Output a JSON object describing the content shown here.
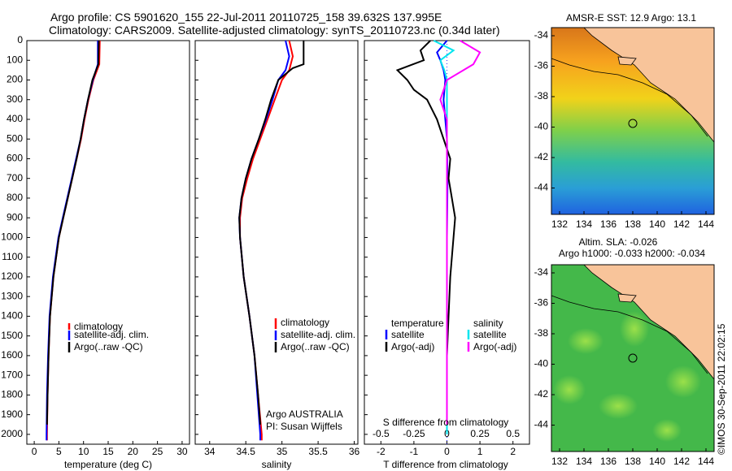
{
  "titles": {
    "line1": "Argo profile: CS 5901620_155 22-Jul-2011 20110725_158 39.632S 137.995E",
    "line2": "Climatology: CARS2009. Satellite-adjusted climatology: synTS_20110723.nc (0.34d later)"
  },
  "depth_ticks": [
    0,
    100,
    200,
    300,
    400,
    500,
    600,
    700,
    800,
    900,
    1000,
    1100,
    1200,
    1300,
    1400,
    1500,
    1600,
    1700,
    1800,
    1900,
    2000
  ],
  "colors": {
    "climatology": "#ff0000",
    "satellite": "#0000ff",
    "argo": "#000000",
    "sal_satellite": "#00e5ee",
    "sal_argo": "#ff00ff"
  },
  "chart_data": [
    {
      "type": "line",
      "xlabel": "temperature (deg C)",
      "xticks": [
        "0",
        "5",
        "10",
        "15",
        "20",
        "25",
        "30"
      ],
      "xlim": [
        -1.5,
        31.5
      ],
      "ylim": [
        2050,
        0
      ],
      "legend": [
        "climatology",
        "satellite-adj. clim.",
        "Argo(..raw -QC)"
      ],
      "series": [
        {
          "name": "climatology",
          "depth": [
            0,
            120,
            200,
            300,
            400,
            500,
            600,
            700,
            800,
            900,
            1000,
            1200,
            1400,
            1600,
            1800,
            2000,
            2030
          ],
          "values": [
            13.3,
            13.2,
            12.0,
            11.0,
            10.2,
            9.5,
            8.6,
            7.7,
            6.8,
            5.9,
            5.0,
            3.9,
            3.2,
            2.9,
            2.7,
            2.6,
            2.6
          ]
        },
        {
          "name": "satellite-adj. clim.",
          "depth": [
            0,
            120,
            200,
            300,
            400,
            500,
            600,
            700,
            800,
            900,
            1000,
            1200,
            1400,
            1600,
            1800,
            2000,
            2030
          ],
          "values": [
            12.9,
            12.9,
            11.9,
            10.9,
            10.1,
            9.4,
            8.5,
            7.6,
            6.7,
            5.8,
            4.9,
            3.8,
            3.1,
            2.8,
            2.6,
            2.5,
            2.5
          ]
        },
        {
          "name": "Argo(..raw -QC)",
          "depth": [
            0,
            120,
            200,
            300,
            400,
            500,
            600,
            700,
            800,
            900,
            1000,
            1200,
            1400,
            1600,
            1800,
            1950
          ],
          "values": [
            13.1,
            13.0,
            11.8,
            10.9,
            10.1,
            9.4,
            8.6,
            7.7,
            6.8,
            5.9,
            5.0,
            3.9,
            3.2,
            2.9,
            2.7,
            2.6
          ]
        }
      ]
    },
    {
      "type": "line",
      "xlabel": "salinity",
      "xticks": [
        "34",
        "34.5",
        "35",
        "35.5",
        "36"
      ],
      "xlim": [
        33.8,
        36.05
      ],
      "ylim": [
        2050,
        0
      ],
      "legend": [
        "climatology",
        "satellite-adj. clim.",
        "Argo(..raw -QC)"
      ],
      "annotation": [
        "Argo AUSTRALIA",
        "PI: Susan Wijffels"
      ],
      "series": [
        {
          "name": "climatology",
          "depth": [
            0,
            80,
            150,
            200,
            300,
            400,
            500,
            600,
            700,
            800,
            900,
            1000,
            1200,
            1400,
            1600,
            1800,
            2000,
            2030
          ],
          "values": [
            35.1,
            35.15,
            35.1,
            35.0,
            34.9,
            34.8,
            34.7,
            34.6,
            34.52,
            34.45,
            34.42,
            34.42,
            34.47,
            34.55,
            34.62,
            34.67,
            34.72,
            34.72
          ]
        },
        {
          "name": "satellite-adj. clim.",
          "depth": [
            0,
            80,
            150,
            200,
            300,
            400,
            500,
            600,
            700,
            800,
            900,
            1000,
            1200,
            1400,
            1600,
            1800,
            2000,
            2030
          ],
          "values": [
            35.05,
            35.1,
            35.05,
            34.95,
            34.87,
            34.78,
            34.68,
            34.58,
            34.5,
            34.44,
            34.41,
            34.42,
            34.47,
            34.55,
            34.62,
            34.66,
            34.7,
            34.7
          ]
        },
        {
          "name": "Argo(..raw -QC)",
          "depth": [
            0,
            120,
            140,
            200,
            300,
            400,
            500,
            600,
            700,
            800,
            900,
            1000,
            1200,
            1400,
            1600,
            1800,
            1950
          ],
          "values": [
            35.3,
            35.3,
            35.15,
            34.95,
            34.85,
            34.77,
            34.68,
            34.58,
            34.5,
            34.44,
            34.41,
            34.42,
            34.47,
            34.55,
            34.62,
            34.67,
            34.7
          ]
        }
      ]
    },
    {
      "type": "line",
      "xlabel": "T difference from climatology",
      "xticks": [
        "-2",
        "-1",
        "0",
        "1",
        "2"
      ],
      "xlim": [
        -2.5,
        2.5
      ],
      "top_xlabel": "S difference from climatology",
      "top_xticks": [
        "-0.5",
        "-0.25",
        "0",
        "0.25",
        "0.5"
      ],
      "ylim": [
        2050,
        0
      ],
      "legend_temperature": [
        "temperature",
        "satellite",
        "Argo(-adj)"
      ],
      "legend_salinity": [
        "salinity",
        "satellite",
        "Argo(-adj)"
      ],
      "series": [
        {
          "name": "satellite",
          "depth": [
            0,
            60,
            100,
            150,
            200,
            300,
            400,
            500,
            700,
            1000,
            1500,
            2000
          ],
          "values": [
            0,
            -0.3,
            -0.2,
            -0.1,
            -0.05,
            -0.1,
            -0.05,
            0,
            0.02,
            0,
            0,
            0
          ]
        },
        {
          "name": "Argo(-adj)",
          "depth": [
            0,
            50,
            100,
            150,
            200,
            250,
            300,
            400,
            500,
            600,
            700,
            800,
            900,
            1000,
            1200,
            1400,
            1600,
            1800,
            1950
          ],
          "values": [
            -0.5,
            -0.8,
            -0.7,
            -1.5,
            -1.2,
            -1.0,
            -0.6,
            -0.3,
            -0.1,
            0.1,
            0.05,
            0.15,
            0.25,
            0.2,
            0.1,
            0.05,
            0,
            0,
            0
          ]
        },
        {
          "name": "sal_satellite",
          "depth": [
            0,
            50,
            100,
            150,
            200,
            400,
            700,
            1000,
            1500,
            2000
          ],
          "values": [
            -0.1,
            0.05,
            -0.05,
            -0.02,
            0,
            0,
            0,
            0,
            0,
            0
          ]
        },
        {
          "name": "sal_argo",
          "depth": [
            0,
            60,
            120,
            200,
            300,
            400,
            500,
            700,
            1000,
            1500,
            1950
          ],
          "values": [
            0.1,
            0.25,
            0.2,
            0.0,
            -0.05,
            0.0,
            0.0,
            0.0,
            0.0,
            0.0,
            0.0
          ]
        }
      ]
    }
  ],
  "maps": {
    "sst_title": "AMSR-E SST: 12.9 Argo: 13.1",
    "sla_title1": "Altim. SLA: -0.026",
    "sla_title2": "Argo h1000: -0.033 h2000: -0.034",
    "lat_ticks": [
      "-34",
      "-36",
      "-38",
      "-40",
      "-42",
      "-44"
    ],
    "lon_ticks": [
      "132",
      "134",
      "136",
      "138",
      "140",
      "142",
      "144"
    ]
  },
  "stamp": "©IMOS 30-Sep-2011 22:02:15"
}
